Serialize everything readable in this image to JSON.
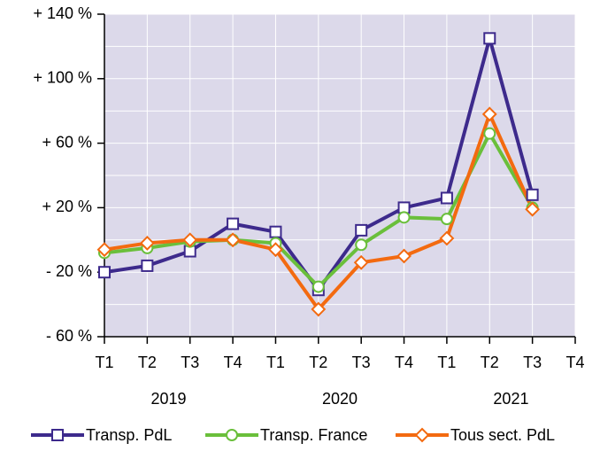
{
  "chart_data": {
    "type": "line",
    "categories": [
      "T1",
      "T2",
      "T3",
      "T4",
      "T1",
      "T2",
      "T3",
      "T4",
      "T1",
      "T2",
      "T3",
      "T4"
    ],
    "x_groups": [
      {
        "label": "2019",
        "span": 4
      },
      {
        "label": "2020",
        "span": 4
      },
      {
        "label": "2021",
        "span": 4
      }
    ],
    "ylim": [
      -60,
      140
    ],
    "yticks": [
      {
        "value": -60,
        "label": "- 60 %"
      },
      {
        "value": -20,
        "label": "- 20 %"
      },
      {
        "value": 20,
        "label": "+ 20 %"
      },
      {
        "value": 60,
        "label": "+ 60 %"
      },
      {
        "value": 100,
        "label": "+ 100 %"
      },
      {
        "value": 140,
        "label": "+ 140 %"
      }
    ],
    "ygrid_minor": [
      -40,
      0,
      40,
      80,
      120
    ],
    "grid": true,
    "background": "#dcd9ea",
    "legend": "bottom",
    "series": [
      {
        "name": "Transp. PdL",
        "color": "#3d2a8c",
        "marker": "square",
        "values": [
          -20,
          -16,
          -7,
          10,
          5,
          -31,
          6,
          20,
          26,
          125,
          28,
          null
        ]
      },
      {
        "name": "Transp. France",
        "color": "#6abf3b",
        "marker": "circle",
        "values": [
          -8,
          -5,
          -1,
          0,
          -2,
          -29,
          -3,
          14,
          13,
          66,
          20,
          null
        ]
      },
      {
        "name": "Tous sect. PdL",
        "color": "#f36a10",
        "marker": "diamond",
        "values": [
          -6,
          -2,
          0,
          0,
          -6,
          -43,
          -14,
          -10,
          1,
          78,
          19,
          null
        ]
      }
    ]
  }
}
